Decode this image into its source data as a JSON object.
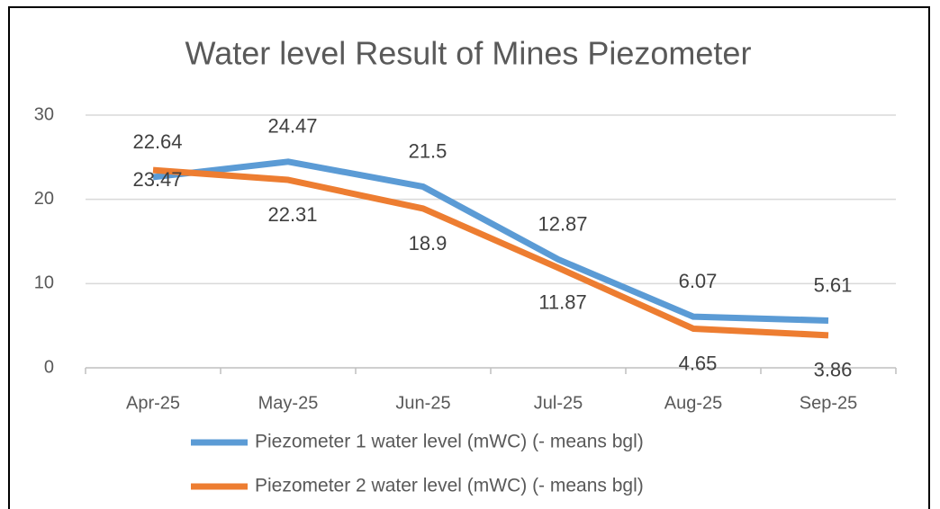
{
  "chart_data": {
    "type": "line",
    "title": "Water level Result of Mines Piezometer",
    "categories": [
      "Apr-25",
      "May-25",
      "Jun-25",
      "Jul-25",
      "Aug-25",
      "Sep-25"
    ],
    "series": [
      {
        "name": "Piezometer 1 water level (mWC) (- means bgl)",
        "color": "#5b9bd5",
        "values": [
          22.64,
          24.47,
          21.5,
          12.87,
          6.07,
          5.61
        ]
      },
      {
        "name": "Piezometer 2 water level (mWC) (- means bgl)",
        "color": "#ed7d31",
        "values": [
          23.47,
          22.31,
          18.9,
          11.87,
          4.65,
          3.86
        ]
      }
    ],
    "ylim": [
      0,
      30
    ],
    "yticks": [
      0,
      10,
      20,
      30
    ],
    "grid": true
  }
}
